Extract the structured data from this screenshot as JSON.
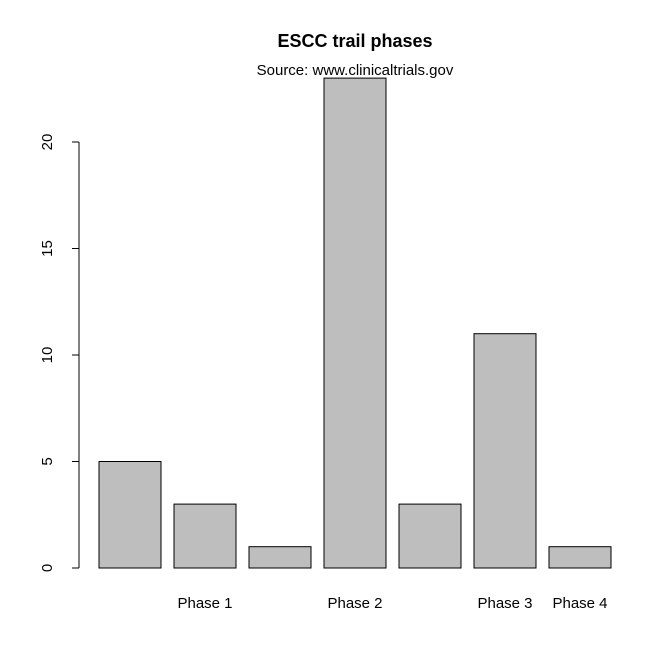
{
  "chart_data": {
    "type": "bar",
    "title": "ESCC trail phases",
    "subtitle": "Source: www.clinicaltrials.gov",
    "xlabel": "",
    "ylabel": "",
    "bar_labels": [
      "",
      "Phase 1",
      "",
      "Phase 2",
      "",
      "Phase 3",
      "Phase 4"
    ],
    "values": [
      5,
      3,
      1,
      23,
      3,
      11,
      1
    ],
    "ylim": [
      0,
      23
    ],
    "yticks": [
      0,
      5,
      10,
      15,
      20
    ],
    "ytick_labels": [
      "0",
      "5",
      "10",
      "15",
      "20"
    ],
    "bar_color": "#bebebe",
    "grid": false,
    "legend": "none"
  }
}
